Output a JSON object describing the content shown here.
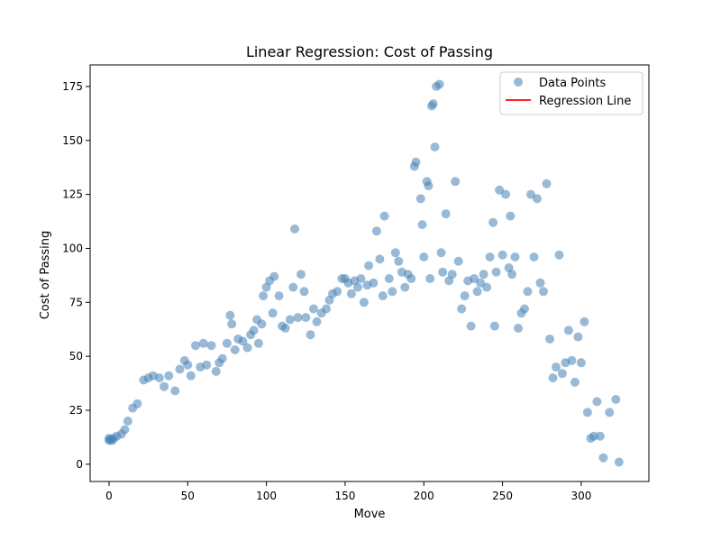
{
  "chart_data": {
    "type": "scatter",
    "title": "Linear Regression: Cost of Passing",
    "xlabel": "Move",
    "ylabel": "Cost of Passing",
    "xlim": [
      -12,
      343
    ],
    "ylim": [
      -8,
      185
    ],
    "xticks": [
      0,
      50,
      100,
      150,
      200,
      250,
      300
    ],
    "yticks": [
      0,
      25,
      50,
      75,
      100,
      125,
      150,
      175
    ],
    "grid": false,
    "legend_position": "top-right",
    "legend": [
      {
        "label": "Data Points",
        "kind": "marker",
        "color": "#4682b4"
      },
      {
        "label": "Regression Line",
        "kind": "line",
        "color": "#ff0000"
      }
    ],
    "series": [
      {
        "name": "Data Points",
        "color": "#4682b4",
        "points": [
          [
            0,
            11
          ],
          [
            0,
            12
          ],
          [
            1,
            11.5
          ],
          [
            2,
            11
          ],
          [
            3,
            12
          ],
          [
            5,
            13
          ],
          [
            8,
            14
          ],
          [
            10,
            16
          ],
          [
            12,
            20
          ],
          [
            15,
            26
          ],
          [
            18,
            28
          ],
          [
            22,
            39
          ],
          [
            25,
            40
          ],
          [
            28,
            41
          ],
          [
            32,
            40
          ],
          [
            35,
            36
          ],
          [
            38,
            41
          ],
          [
            42,
            34
          ],
          [
            45,
            44
          ],
          [
            48,
            48
          ],
          [
            50,
            46
          ],
          [
            52,
            41
          ],
          [
            55,
            55
          ],
          [
            58,
            45
          ],
          [
            60,
            56
          ],
          [
            62,
            46
          ],
          [
            65,
            55
          ],
          [
            68,
            43
          ],
          [
            70,
            47
          ],
          [
            72,
            49
          ],
          [
            75,
            56
          ],
          [
            77,
            69
          ],
          [
            78,
            65
          ],
          [
            80,
            53
          ],
          [
            82,
            58
          ],
          [
            85,
            57
          ],
          [
            88,
            54
          ],
          [
            90,
            60
          ],
          [
            92,
            62
          ],
          [
            94,
            67
          ],
          [
            95,
            56
          ],
          [
            97,
            65
          ],
          [
            98,
            78
          ],
          [
            100,
            82
          ],
          [
            102,
            85
          ],
          [
            104,
            70
          ],
          [
            105,
            87
          ],
          [
            108,
            78
          ],
          [
            110,
            64
          ],
          [
            112,
            63
          ],
          [
            115,
            67
          ],
          [
            117,
            82
          ],
          [
            118,
            109
          ],
          [
            120,
            68
          ],
          [
            122,
            88
          ],
          [
            124,
            80
          ],
          [
            125,
            68
          ],
          [
            128,
            60
          ],
          [
            130,
            72
          ],
          [
            132,
            66
          ],
          [
            135,
            70
          ],
          [
            138,
            72
          ],
          [
            140,
            76
          ],
          [
            142,
            79
          ],
          [
            145,
            80
          ],
          [
            148,
            86
          ],
          [
            150,
            86
          ],
          [
            152,
            84
          ],
          [
            154,
            79
          ],
          [
            156,
            85
          ],
          [
            158,
            82
          ],
          [
            160,
            86
          ],
          [
            162,
            75
          ],
          [
            164,
            83
          ],
          [
            165,
            92
          ],
          [
            168,
            84
          ],
          [
            170,
            108
          ],
          [
            172,
            95
          ],
          [
            174,
            78
          ],
          [
            175,
            115
          ],
          [
            178,
            86
          ],
          [
            180,
            80
          ],
          [
            182,
            98
          ],
          [
            184,
            94
          ],
          [
            186,
            89
          ],
          [
            188,
            82
          ],
          [
            190,
            88
          ],
          [
            192,
            86
          ],
          [
            194,
            138
          ],
          [
            195,
            140
          ],
          [
            198,
            123
          ],
          [
            199,
            111
          ],
          [
            200,
            96
          ],
          [
            202,
            131
          ],
          [
            203,
            129
          ],
          [
            204,
            86
          ],
          [
            205,
            166
          ],
          [
            206,
            167
          ],
          [
            207,
            147
          ],
          [
            208,
            175
          ],
          [
            210,
            176
          ],
          [
            211,
            98
          ],
          [
            212,
            89
          ],
          [
            214,
            116
          ],
          [
            216,
            85
          ],
          [
            218,
            88
          ],
          [
            220,
            131
          ],
          [
            222,
            94
          ],
          [
            224,
            72
          ],
          [
            226,
            78
          ],
          [
            228,
            85
          ],
          [
            230,
            64
          ],
          [
            232,
            86
          ],
          [
            234,
            80
          ],
          [
            236,
            84
          ],
          [
            238,
            88
          ],
          [
            240,
            82
          ],
          [
            242,
            96
          ],
          [
            244,
            112
          ],
          [
            245,
            64
          ],
          [
            246,
            89
          ],
          [
            248,
            127
          ],
          [
            250,
            97
          ],
          [
            252,
            125
          ],
          [
            254,
            91
          ],
          [
            255,
            115
          ],
          [
            256,
            88
          ],
          [
            258,
            96
          ],
          [
            260,
            63
          ],
          [
            262,
            70
          ],
          [
            264,
            72
          ],
          [
            266,
            80
          ],
          [
            268,
            125
          ],
          [
            270,
            96
          ],
          [
            272,
            123
          ],
          [
            274,
            84
          ],
          [
            276,
            80
          ],
          [
            278,
            130
          ],
          [
            280,
            58
          ],
          [
            282,
            40
          ],
          [
            284,
            45
          ],
          [
            286,
            97
          ],
          [
            288,
            42
          ],
          [
            290,
            47
          ],
          [
            292,
            62
          ],
          [
            294,
            48
          ],
          [
            296,
            38
          ],
          [
            298,
            59
          ],
          [
            300,
            47
          ],
          [
            302,
            66
          ],
          [
            304,
            24
          ],
          [
            306,
            12
          ],
          [
            308,
            13
          ],
          [
            310,
            29
          ],
          [
            312,
            13
          ],
          [
            314,
            3
          ],
          [
            318,
            24
          ],
          [
            322,
            30
          ],
          [
            324,
            1
          ]
        ]
      }
    ]
  }
}
